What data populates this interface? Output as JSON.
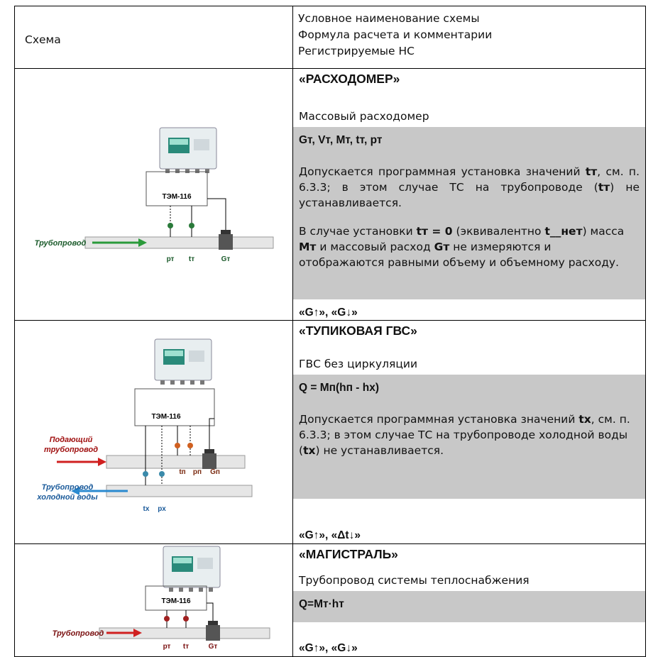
{
  "header": {
    "schema": "Схема",
    "description": [
      "Условное наименование схемы",
      "Формула расчета и комментарии",
      "Регистрируемые НС"
    ]
  },
  "rows": [
    {
      "diagram": {
        "device": "ТЭМ-116",
        "pipe": "Трубопровод",
        "sensors": [
          "рт",
          "tт",
          "Gт"
        ]
      },
      "title": "«РАСХОДОМЕР»",
      "subtitle": "Массовый расходомер",
      "formula": "Gт, Vт, Мт, tт, рт",
      "comments": [
        [
          {
            "text": "Допускается программная установка значений "
          },
          {
            "text": "tт",
            "bold": true
          },
          {
            "text": ", см. п. 6.3.3; в этом случае ТС на трубопроводе ("
          },
          {
            "text": "tт",
            "bold": true
          },
          {
            "text": ") не устанавливается."
          }
        ],
        [
          {
            "text": "В случае установки "
          },
          {
            "text": "tт = 0",
            "bold": true
          },
          {
            "text": " (эквивалентно "
          },
          {
            "text": "t__нет",
            "bold": true
          },
          {
            "text": ") масса "
          },
          {
            "text": "Мт",
            "bold": true
          },
          {
            "text": " и массовый расход "
          },
          {
            "text": "Gт",
            "bold": true
          },
          {
            "text": " не измеряются и отображаются равными объему и объемному расходу."
          }
        ]
      ],
      "events": "«G↑», «G↓»"
    },
    {
      "diagram": {
        "device": "ТЭМ-116",
        "supply": [
          "Подающий",
          "трубопровод"
        ],
        "cold": [
          "Трубопровод",
          "холодной воды"
        ],
        "sensors": [
          "tп",
          "рп",
          "Gп",
          "tх",
          "рх"
        ]
      },
      "title": "«ТУПИКОВАЯ ГВС»",
      "subtitle": "ГВС без циркуляции",
      "formula": "Q = Мп(hп - hх)",
      "comments": [
        [
          {
            "text": "Допускается программная установка значений "
          },
          {
            "text": "tх",
            "bold": true
          },
          {
            "text": ", см. п. 6.3.3; в этом случае ТС на трубопроводе холодной воды ("
          },
          {
            "text": "tх",
            "bold": true
          },
          {
            "text": ") не устанавливается."
          }
        ]
      ],
      "events": "«G↑», «Δt↓»"
    },
    {
      "diagram": {
        "device": "ТЭМ-116",
        "pipe": "Трубопровод",
        "sensors": [
          "рт",
          "tт",
          "Gт"
        ]
      },
      "title": "«МАГИСТРАЛЬ»",
      "subtitle": "Трубопровод системы теплоснабжения",
      "formula": "Q=Мт·hт",
      "comments": [],
      "events": "«G↑», «G↓»"
    }
  ]
}
